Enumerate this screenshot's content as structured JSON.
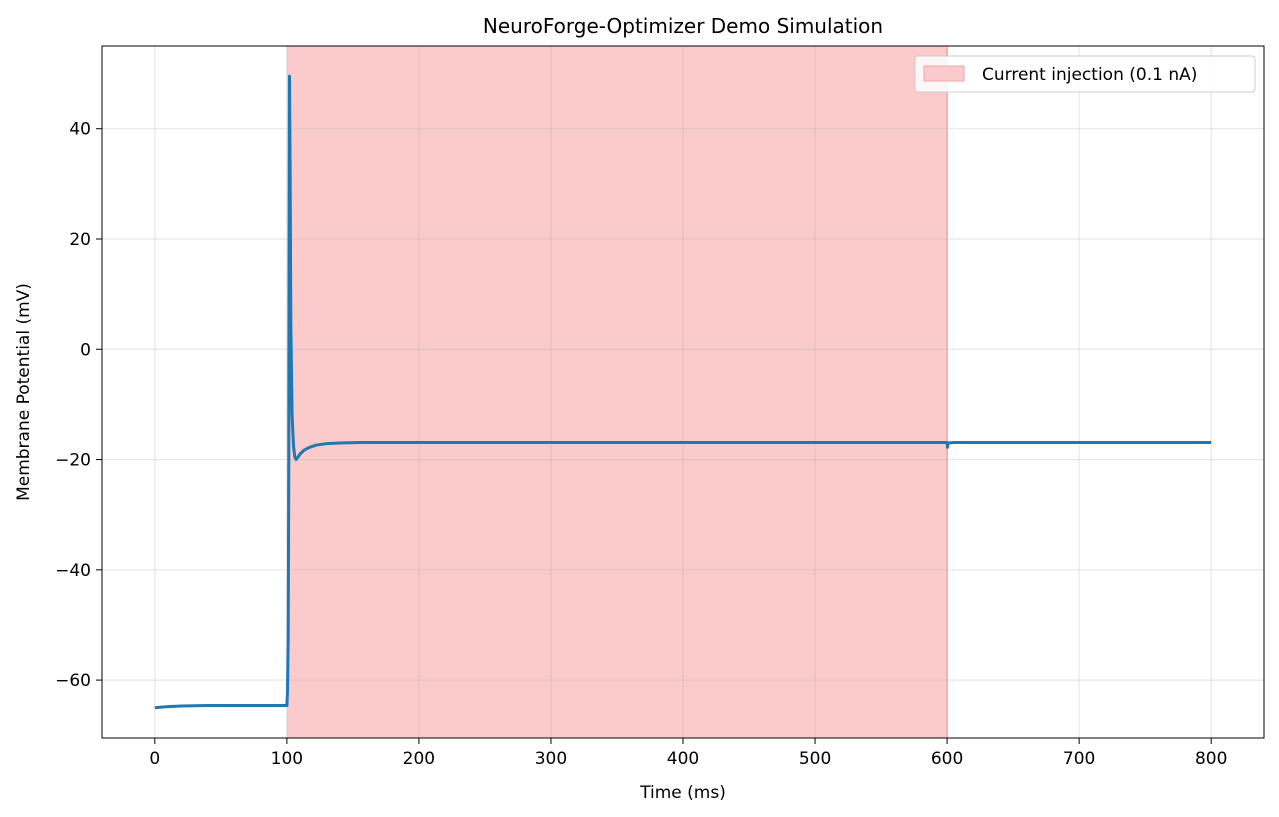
{
  "chart_data": {
    "type": "line",
    "title": "NeuroForge-Optimizer Demo Simulation",
    "xlabel": "Time (ms)",
    "ylabel": "Membrane Potential (mV)",
    "xlim": [
      -40,
      840
    ],
    "ylim": [
      -70.5,
      55
    ],
    "xticks": [
      0,
      100,
      200,
      300,
      400,
      500,
      600,
      700,
      800
    ],
    "yticks": [
      -60,
      -40,
      -20,
      0,
      20,
      40
    ],
    "xtick_labels": [
      "0",
      "100",
      "200",
      "300",
      "400",
      "500",
      "600",
      "700",
      "800"
    ],
    "ytick_labels": [
      "−60",
      "−40",
      "−20",
      "0",
      "20",
      "40"
    ],
    "grid": true,
    "legend_position": "top-right",
    "shaded_region": {
      "label": "Current injection (0.1 nA)",
      "x_start": 100,
      "x_end": 600,
      "color": "#fbcaca",
      "edge_color": "#f2a6a6"
    },
    "series": [
      {
        "color": "#1f77b4",
        "x": [
          0,
          5,
          10,
          20,
          40,
          60,
          80,
          100,
          100.5,
          101,
          101.5,
          102,
          102.5,
          103,
          104,
          105,
          106,
          107,
          108,
          110,
          113,
          117,
          122,
          130,
          140,
          155,
          175,
          200,
          300,
          400,
          500,
          599,
          600,
          600.3,
          600.7,
          601,
          605,
          650,
          700,
          800
        ],
        "y": [
          -65,
          -64.9,
          -64.8,
          -64.7,
          -64.6,
          -64.6,
          -64.6,
          -64.6,
          -62,
          -52,
          -20,
          49.5,
          30,
          5,
          -12,
          -17.5,
          -19.5,
          -20,
          -19.7,
          -19,
          -18.3,
          -17.8,
          -17.4,
          -17.1,
          -17,
          -16.9,
          -16.9,
          -16.9,
          -16.9,
          -16.9,
          -16.9,
          -16.9,
          -16.9,
          -17.8,
          -17.2,
          -17,
          -16.9,
          -16.9,
          -16.9,
          -16.9
        ]
      }
    ]
  }
}
